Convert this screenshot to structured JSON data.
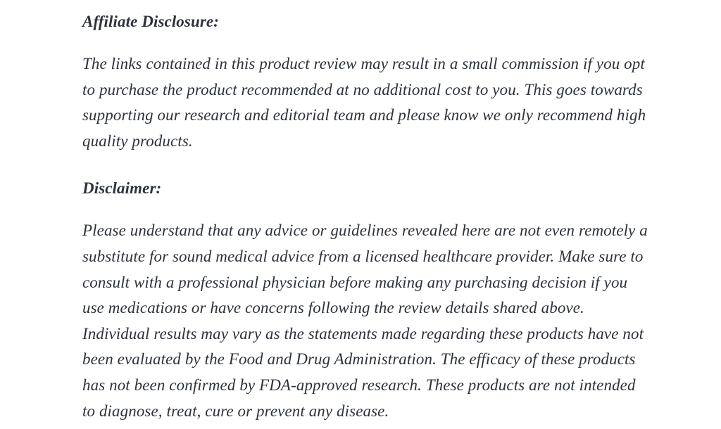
{
  "page": {
    "background_color": "#ffffff",
    "text_color": "#2d323b"
  },
  "affiliate": {
    "heading": "Affiliate Disclosure:",
    "paragraph": "The links contained in this product review may result in a small commission if you opt to purchase the product recommended at no additional cost to you. This goes towards supporting our research and editorial team and please know we only recommend high quality products."
  },
  "disclaimer": {
    "heading": "Disclaimer:",
    "paragraph": "Please understand that any advice or guidelines revealed here are not even remotely a substitute for sound medical advice from a licensed healthcare provider. Make sure to consult with a professional physician before making any purchasing decision if you use medications or have concerns following the review details shared above. Individual results may vary as the statements made regarding these products have not been evaluated by the Food and Drug Administration. The efficacy of these products has not been confirmed by FDA-approved research. These products are not intended to diagnose, treat, cure or prevent any disease."
  }
}
